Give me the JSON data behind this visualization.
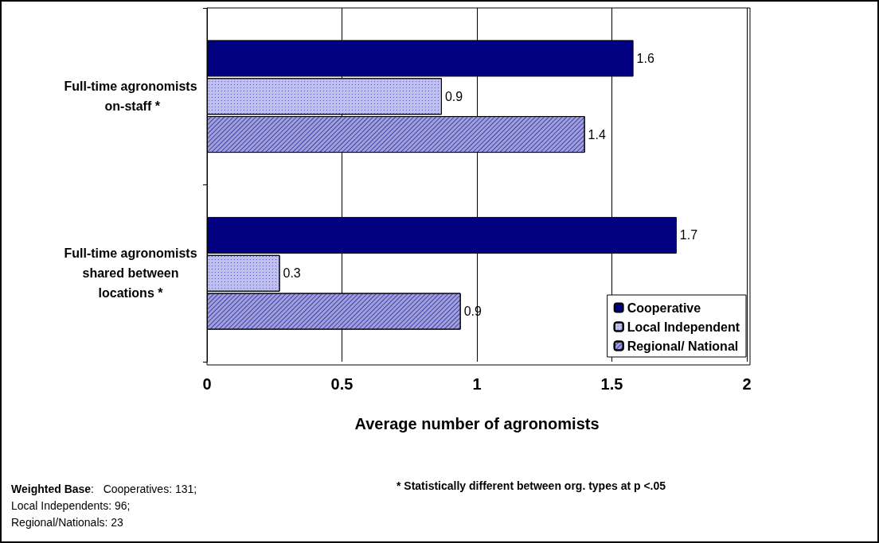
{
  "chart_data": {
    "type": "bar",
    "orientation": "horizontal",
    "categories": [
      "Full-time agronomists on-staff *",
      "Full-time agronomists shared between locations *"
    ],
    "series": [
      {
        "name": "Cooperative",
        "color": "#000080",
        "values": [
          1.58,
          1.74
        ],
        "value_labels": [
          "1.6",
          "1.7"
        ]
      },
      {
        "name": "Local Independent",
        "color": "#c0c0ec",
        "values": [
          0.87,
          0.27
        ],
        "value_labels": [
          "0.9",
          "0.3"
        ]
      },
      {
        "name": "Regional/ National",
        "color": "#a0a0dc",
        "values": [
          1.4,
          0.94
        ],
        "value_labels": [
          "1.4",
          "0.9"
        ]
      }
    ],
    "xlim": [
      0,
      2
    ],
    "xticks": [
      0,
      0.5,
      1,
      1.5,
      2
    ],
    "xlabel": "Average number of agronomists",
    "grid": "x",
    "legend": "bottom right",
    "annotations": [
      "Weighted Base:   Cooperatives: 131;\nLocal Independents: 96;\nRegional/Nationals: 23",
      "* Statistically different between org. types at p <.05"
    ]
  }
}
